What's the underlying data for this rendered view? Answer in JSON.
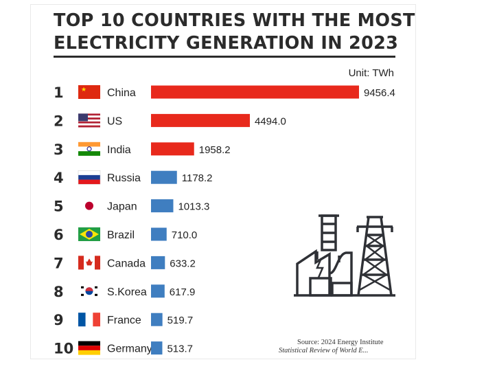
{
  "header": {
    "title_line1": "TOP 10 COUNTRIES WITH THE MOST",
    "title_line2": "ELECTRICITY GENERATION IN 2023",
    "unit": "Unit: TWh"
  },
  "source": {
    "line1": "Source: 2024 Energy Institute",
    "line2": "Statistical Review of World E..."
  },
  "illustration": {
    "icon": "power-plant-and-transmission-tower-icon",
    "color": "#2f3136"
  },
  "colors": {
    "top3": "#e8291c",
    "others": "#3f7ec0",
    "text": "#2b2b2b"
  },
  "chart_data": {
    "type": "bar",
    "orientation": "horizontal",
    "title": "TOP 10 COUNTRIES WITH THE MOST ELECTRICITY GENERATION IN 2023",
    "unit": "TWh",
    "xlim": [
      0,
      9456.4
    ],
    "ranks": [
      "1",
      "2",
      "3",
      "4",
      "5",
      "6",
      "7",
      "8",
      "9",
      "10"
    ],
    "categories": [
      "China",
      "US",
      "India",
      "Russia",
      "Japan",
      "Brazil",
      "Canada",
      "S.Korea",
      "France",
      "Germany"
    ],
    "flags": [
      "china-flag-icon",
      "us-flag-icon",
      "india-flag-icon",
      "russia-flag-icon",
      "japan-flag-icon",
      "brazil-flag-icon",
      "canada-flag-icon",
      "south-korea-flag-icon",
      "france-flag-icon",
      "germany-flag-icon"
    ],
    "values": [
      9456.4,
      4494.0,
      1958.2,
      1178.2,
      1013.3,
      710.0,
      633.2,
      617.9,
      519.7,
      513.7
    ],
    "value_labels": [
      "9456.4",
      "4494.0",
      "1958.2",
      "1178.2",
      "1013.3",
      "710.0",
      "633.2",
      "617.9",
      "519.7",
      "513.7"
    ],
    "highlight_top": 3
  }
}
